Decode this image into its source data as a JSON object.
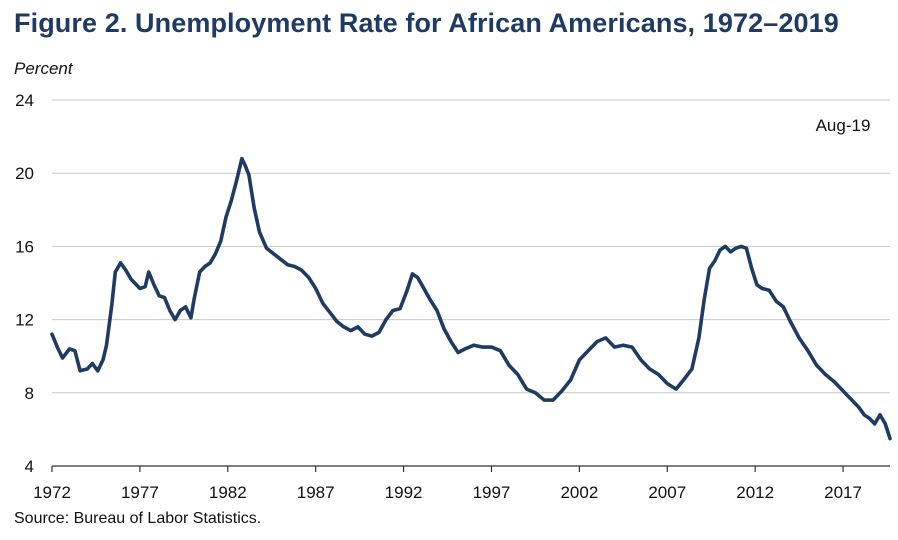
{
  "chart_data": {
    "type": "line",
    "title": "Figure 2. Unemployment Rate for African Americans, 1972–2019",
    "ylabel": "Percent",
    "xlabel": "",
    "source": "Source: Bureau of Labor Statistics.",
    "annotation": "Aug-19",
    "xlim": [
      1972,
      2019.67
    ],
    "ylim": [
      4,
      24
    ],
    "x_ticks": [
      1972,
      1977,
      1982,
      1987,
      1992,
      1997,
      2002,
      2007,
      2012,
      2017
    ],
    "y_ticks": [
      4,
      8,
      12,
      16,
      20,
      24
    ],
    "grid": "horizontal",
    "series": [
      {
        "name": "Unemployment rate, African Americans",
        "color": "#1f3b64",
        "x": [
          1972.0,
          1972.3,
          1972.6,
          1973.0,
          1973.3,
          1973.6,
          1974.0,
          1974.3,
          1974.6,
          1974.9,
          1975.1,
          1975.4,
          1975.6,
          1975.9,
          1976.2,
          1976.5,
          1976.8,
          1977.0,
          1977.3,
          1977.5,
          1977.8,
          1978.1,
          1978.4,
          1978.7,
          1979.0,
          1979.3,
          1979.6,
          1979.9,
          1980.1,
          1980.4,
          1980.7,
          1981.0,
          1981.3,
          1981.6,
          1981.9,
          1982.2,
          1982.5,
          1982.8,
          1983.0,
          1983.2,
          1983.5,
          1983.8,
          1984.2,
          1984.6,
          1985.0,
          1985.4,
          1985.8,
          1986.2,
          1986.6,
          1987.0,
          1987.4,
          1987.8,
          1988.2,
          1988.6,
          1989.0,
          1989.4,
          1989.8,
          1990.2,
          1990.6,
          1991.0,
          1991.4,
          1991.8,
          1992.2,
          1992.5,
          1992.8,
          1993.1,
          1993.5,
          1993.9,
          1994.3,
          1994.7,
          1995.1,
          1995.5,
          1996.0,
          1996.5,
          1997.0,
          1997.5,
          1998.0,
          1998.5,
          1999.0,
          1999.5,
          2000.0,
          2000.5,
          2001.0,
          2001.5,
          2002.0,
          2002.5,
          2003.0,
          2003.5,
          2004.0,
          2004.5,
          2005.0,
          2005.5,
          2006.0,
          2006.5,
          2007.0,
          2007.5,
          2008.0,
          2008.4,
          2008.8,
          2009.1,
          2009.4,
          2009.7,
          2010.0,
          2010.3,
          2010.6,
          2010.9,
          2011.2,
          2011.5,
          2011.8,
          2012.1,
          2012.4,
          2012.8,
          2013.2,
          2013.6,
          2014.0,
          2014.5,
          2015.0,
          2015.5,
          2016.0,
          2016.5,
          2017.0,
          2017.5,
          2017.9,
          2018.2,
          2018.5,
          2018.8,
          2019.1,
          2019.4,
          2019.67
        ],
        "values": [
          11.2,
          10.5,
          9.9,
          10.4,
          10.3,
          9.2,
          9.3,
          9.6,
          9.2,
          9.8,
          10.6,
          12.8,
          14.6,
          15.1,
          14.7,
          14.2,
          13.9,
          13.7,
          13.8,
          14.6,
          13.9,
          13.3,
          13.2,
          12.5,
          12.0,
          12.5,
          12.7,
          12.1,
          13.2,
          14.6,
          14.9,
          15.1,
          15.6,
          16.3,
          17.6,
          18.5,
          19.6,
          20.8,
          20.4,
          19.9,
          18.1,
          16.8,
          15.9,
          15.6,
          15.3,
          15.0,
          14.9,
          14.7,
          14.3,
          13.7,
          12.9,
          12.4,
          11.9,
          11.6,
          11.4,
          11.6,
          11.2,
          11.1,
          11.3,
          12.0,
          12.5,
          12.6,
          13.6,
          14.5,
          14.3,
          13.8,
          13.1,
          12.5,
          11.5,
          10.8,
          10.2,
          10.4,
          10.6,
          10.5,
          10.5,
          10.3,
          9.5,
          9.0,
          8.2,
          8.0,
          7.6,
          7.6,
          8.1,
          8.7,
          9.8,
          10.3,
          10.8,
          11.0,
          10.5,
          10.6,
          10.5,
          9.8,
          9.3,
          9.0,
          8.5,
          8.2,
          8.8,
          9.3,
          11.0,
          13.1,
          14.8,
          15.2,
          15.8,
          16.0,
          15.7,
          15.9,
          16.0,
          15.9,
          14.8,
          13.9,
          13.7,
          13.6,
          13.0,
          12.7,
          11.9,
          11.0,
          10.3,
          9.5,
          9.0,
          8.6,
          8.1,
          7.6,
          7.2,
          6.8,
          6.6,
          6.3,
          6.8,
          6.3,
          5.5
        ]
      }
    ]
  }
}
